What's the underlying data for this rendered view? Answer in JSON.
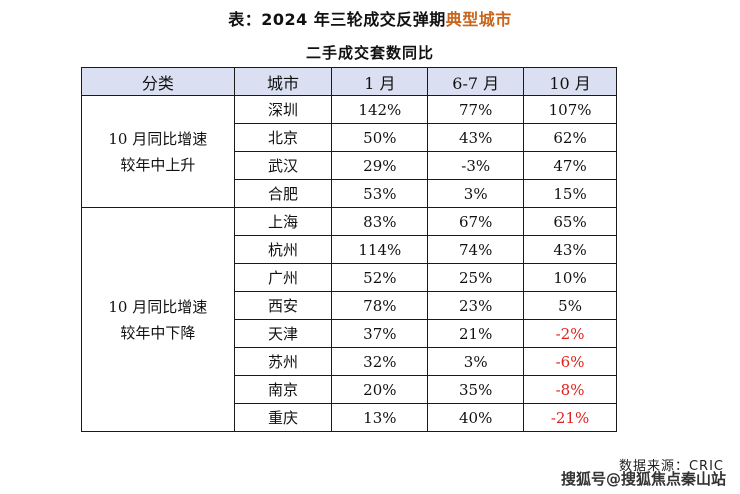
{
  "title": {
    "prefix": "表：2024 年三轮成交反弹期",
    "highlight": "典型城市",
    "highlight_color": "#c8651b"
  },
  "subtitle": "二手成交套数同比",
  "table": {
    "header_bg": "#dae0f1",
    "negative_color": "#e0211d",
    "columns": [
      "分类",
      "城市",
      "1 月",
      "6-7 月",
      "10 月"
    ],
    "groups": [
      {
        "category_line1": "10 月同比增速",
        "category_line2": "较年中上升",
        "rows": [
          {
            "city": "深圳",
            "jan": "142%",
            "junjul": "77%",
            "oct": "107%",
            "oct_negative": false
          },
          {
            "city": "北京",
            "jan": "50%",
            "junjul": "43%",
            "oct": "62%",
            "oct_negative": false
          },
          {
            "city": "武汉",
            "jan": "29%",
            "junjul": "-3%",
            "oct": "47%",
            "oct_negative": false
          },
          {
            "city": "合肥",
            "jan": "53%",
            "junjul": "3%",
            "oct": "15%",
            "oct_negative": false
          }
        ]
      },
      {
        "category_line1": "10 月同比增速",
        "category_line2": "较年中下降",
        "rows": [
          {
            "city": "上海",
            "jan": "83%",
            "junjul": "67%",
            "oct": "65%",
            "oct_negative": false
          },
          {
            "city": "杭州",
            "jan": "114%",
            "junjul": "74%",
            "oct": "43%",
            "oct_negative": false
          },
          {
            "city": "广州",
            "jan": "52%",
            "junjul": "25%",
            "oct": "10%",
            "oct_negative": false
          },
          {
            "city": "西安",
            "jan": "78%",
            "junjul": "23%",
            "oct": "5%",
            "oct_negative": false
          },
          {
            "city": "天津",
            "jan": "37%",
            "junjul": "21%",
            "oct": "-2%",
            "oct_negative": true
          },
          {
            "city": "苏州",
            "jan": "32%",
            "junjul": "3%",
            "oct": "-6%",
            "oct_negative": true
          },
          {
            "city": "南京",
            "jan": "20%",
            "junjul": "35%",
            "oct": "-8%",
            "oct_negative": true
          },
          {
            "city": "重庆",
            "jan": "13%",
            "junjul": "40%",
            "oct": "-21%",
            "oct_negative": true
          }
        ]
      }
    ]
  },
  "source": "数据来源：CRIC",
  "watermark": "搜狐号@搜狐焦点秦山站"
}
